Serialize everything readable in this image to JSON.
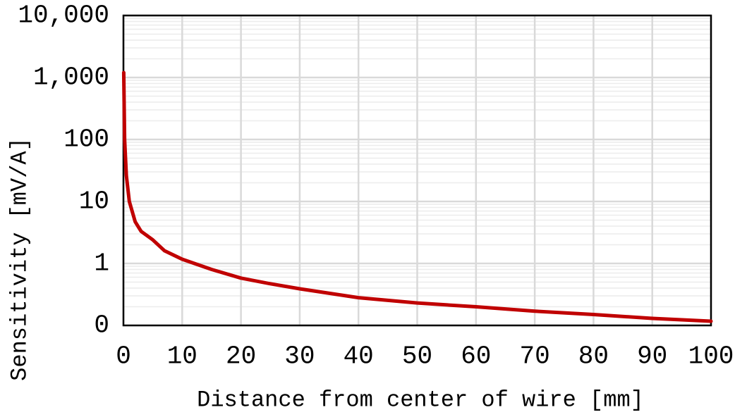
{
  "chart_data": {
    "type": "line",
    "x_label": "Distance from center of wire [mm]",
    "y_label": "Sensitivity [mV/A]",
    "x": [
      0.05,
      0.2,
      0.5,
      1,
      2,
      3,
      5,
      7,
      10,
      15,
      20,
      25,
      30,
      40,
      50,
      60,
      70,
      80,
      90,
      100
    ],
    "series": [
      {
        "name": "Sensitivity",
        "color": "#c00000",
        "values": [
          1200,
          100,
          26,
          10,
          4.7,
          3.3,
          2.4,
          1.6,
          1.17,
          0.8,
          0.58,
          0.47,
          0.39,
          0.28,
          0.23,
          0.2,
          0.17,
          0.15,
          0.13,
          0.117
        ]
      }
    ],
    "xlim": [
      0,
      100
    ],
    "xticks": [
      0,
      10,
      20,
      30,
      40,
      50,
      60,
      70,
      80,
      90,
      100
    ],
    "ylim": [
      0.1,
      10000
    ],
    "y_scale": "log",
    "yticks": [
      {
        "value": 0.1,
        "label": "0"
      },
      1,
      10,
      100,
      {
        "value": 1000,
        "label": "1,000"
      },
      {
        "value": 10000,
        "label": "10,000"
      }
    ],
    "grid": true,
    "minor_grid": true
  }
}
